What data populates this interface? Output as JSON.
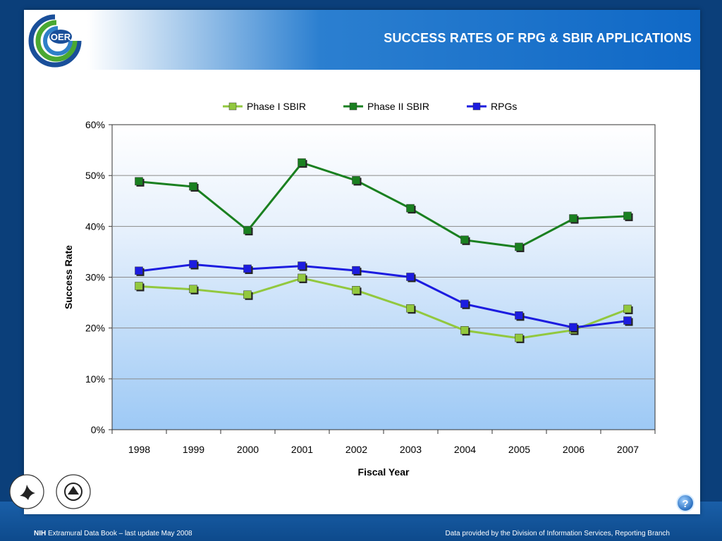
{
  "slide": {
    "title": "SUCCESS RATES OF RPG & SBIR APPLICATIONS",
    "logo_text": "OER"
  },
  "footer": {
    "left_bold": "NIH",
    "left_text": " Extramural Data Book – last update May 2008",
    "right_text": "Data provided by the Division of Information Services, Reporting Branch"
  },
  "help": {
    "label": "?"
  },
  "chart_data": {
    "type": "line",
    "title": "",
    "xlabel": "Fiscal Year",
    "ylabel": "Success Rate",
    "categories": [
      "1998",
      "1999",
      "2000",
      "2001",
      "2002",
      "2003",
      "2004",
      "2005",
      "2006",
      "2007"
    ],
    "ylim": [
      0,
      60
    ],
    "yticks": [
      "0%",
      "10%",
      "20%",
      "30%",
      "40%",
      "50%",
      "60%"
    ],
    "grid": true,
    "legend_position": "top",
    "series": [
      {
        "name": "Phase I SBIR",
        "color": "#92c83e",
        "values": [
          28.2,
          27.6,
          26.5,
          29.8,
          27.4,
          23.8,
          19.5,
          18.0,
          19.6,
          23.7
        ]
      },
      {
        "name": "Phase II SBIR",
        "color": "#1a8020",
        "values": [
          48.8,
          47.8,
          39.2,
          52.5,
          49.0,
          43.5,
          37.3,
          35.9,
          41.5,
          42.0
        ]
      },
      {
        "name": "RPGs",
        "color": "#1c1ce0",
        "values": [
          31.2,
          32.5,
          31.6,
          32.2,
          31.3,
          30.0,
          24.7,
          22.4,
          20.1,
          21.4
        ]
      }
    ]
  }
}
